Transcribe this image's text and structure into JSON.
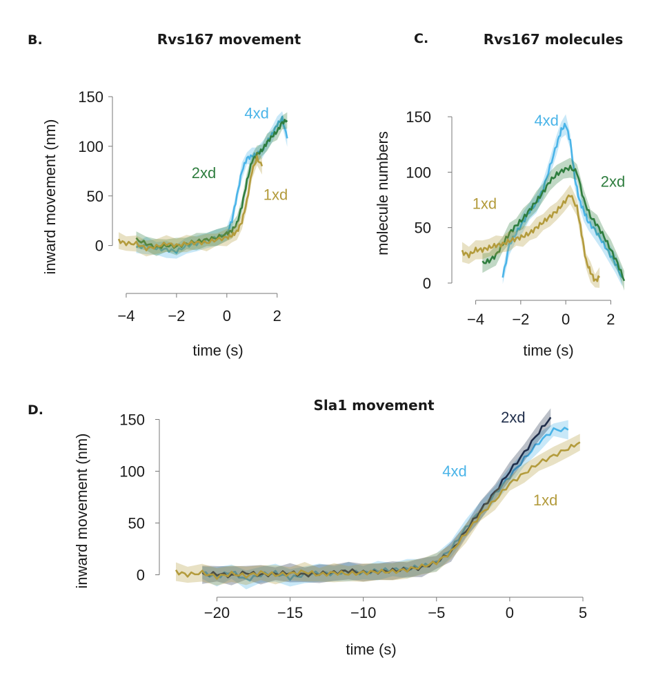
{
  "colors": {
    "4xd": "#4ab4e8",
    "2xd": "#2e7d3e",
    "1xd": "#b39b3c",
    "2xd_dark": "#1f2d4a"
  },
  "chart_data": [
    {
      "panel": "B.",
      "type": "line",
      "title": "Rvs167 movement",
      "xlabel": "time (s)",
      "ylabel": "inward movement (nm)",
      "xlim": [
        -4.3,
        2.5
      ],
      "ylim": [
        -10,
        150
      ],
      "xticks": [
        "−4",
        "−2",
        "0",
        "2"
      ],
      "xtick_values": [
        -4,
        -2,
        0,
        2
      ],
      "yticks": [
        "0",
        "50",
        "100",
        "150"
      ],
      "ytick_values": [
        0,
        50,
        100,
        150
      ],
      "shaded_error": true,
      "series": [
        {
          "name": "4xd",
          "color_key": "4xd",
          "x": [
            -3.6,
            -3.2,
            -2.8,
            -2.4,
            -2.0,
            -1.6,
            -1.2,
            -0.8,
            -0.4,
            0.0,
            0.2,
            0.4,
            0.6,
            0.8,
            1.0,
            1.2,
            1.4,
            1.6,
            1.8,
            2.0,
            2.2,
            2.4
          ],
          "y": [
            -2,
            0,
            -3,
            -4,
            -6,
            0,
            2,
            5,
            8,
            12,
            25,
            50,
            75,
            88,
            90,
            92,
            96,
            104,
            112,
            122,
            128,
            108
          ]
        },
        {
          "name": "2xd",
          "color_key": "2xd",
          "x": [
            -3.6,
            -3.2,
            -2.8,
            -2.4,
            -2.0,
            -1.6,
            -1.2,
            -0.8,
            -0.4,
            0.0,
            0.2,
            0.4,
            0.6,
            0.8,
            1.0,
            1.2,
            1.4,
            1.6,
            1.8,
            2.0,
            2.2,
            2.4
          ],
          "y": [
            6,
            2,
            -2,
            0,
            -1,
            2,
            4,
            6,
            8,
            12,
            15,
            22,
            40,
            65,
            85,
            92,
            96,
            104,
            110,
            115,
            124,
            126
          ]
        },
        {
          "name": "1xd",
          "color_key": "1xd",
          "x": [
            -4.3,
            -4.0,
            -3.6,
            -3.2,
            -2.8,
            -2.4,
            -2.0,
            -1.6,
            -1.2,
            -0.8,
            -0.4,
            0.0,
            0.2,
            0.4,
            0.6,
            0.8,
            1.0,
            1.2,
            1.4
          ],
          "y": [
            5,
            2,
            2,
            -3,
            -1,
            2,
            0,
            2,
            3,
            3,
            6,
            8,
            10,
            14,
            24,
            45,
            75,
            88,
            80
          ]
        }
      ],
      "annotations": [
        {
          "text": "4xd",
          "color_key": "4xd",
          "x": 0.7,
          "y": 128
        },
        {
          "text": "2xd",
          "color_key": "2xd",
          "x": -1.4,
          "y": 68
        },
        {
          "text": "1xd",
          "color_key": "1xd",
          "x": 1.45,
          "y": 46
        }
      ]
    },
    {
      "panel": "C.",
      "type": "line",
      "title": "Rvs167 molecules",
      "xlabel": "time (s)",
      "ylabel": "molecule numbers",
      "xlim": [
        -4.6,
        2.6
      ],
      "ylim": [
        -5,
        165
      ],
      "xticks": [
        "−4",
        "−2",
        "0",
        "2"
      ],
      "xtick_values": [
        -4,
        -2,
        0,
        2
      ],
      "yticks": [
        "0",
        "50",
        "100",
        "150"
      ],
      "ytick_values": [
        0,
        50,
        100,
        150
      ],
      "shaded_error": true,
      "series": [
        {
          "name": "4xd",
          "color_key": "4xd",
          "x": [
            -2.8,
            -2.5,
            -2.2,
            -1.9,
            -1.6,
            -1.3,
            -1.0,
            -0.7,
            -0.4,
            -0.2,
            0.0,
            0.2,
            0.4,
            0.6,
            0.8,
            1.0,
            1.3,
            1.6,
            1.9,
            2.2,
            2.5
          ],
          "y": [
            5,
            35,
            45,
            55,
            65,
            72,
            85,
            105,
            125,
            138,
            143,
            128,
            95,
            75,
            65,
            55,
            48,
            38,
            28,
            18,
            5
          ]
        },
        {
          "name": "2xd",
          "color_key": "2xd",
          "x": [
            -3.7,
            -3.4,
            -3.1,
            -2.8,
            -2.5,
            -2.2,
            -1.9,
            -1.6,
            -1.3,
            -1.0,
            -0.7,
            -0.4,
            -0.1,
            0.2,
            0.5,
            0.8,
            1.1,
            1.4,
            1.7,
            2.0,
            2.3,
            2.6
          ],
          "y": [
            18,
            20,
            25,
            35,
            45,
            52,
            58,
            66,
            74,
            82,
            92,
            98,
            102,
            104,
            100,
            75,
            60,
            52,
            42,
            30,
            18,
            2
          ]
        },
        {
          "name": "1xd",
          "color_key": "1xd",
          "x": [
            -4.6,
            -4.3,
            -4.0,
            -3.7,
            -3.4,
            -3.1,
            -2.8,
            -2.5,
            -2.2,
            -1.9,
            -1.6,
            -1.3,
            -1.0,
            -0.7,
            -0.4,
            -0.1,
            0.2,
            0.5,
            0.7,
            0.9,
            1.1,
            1.3,
            1.5
          ],
          "y": [
            28,
            25,
            30,
            30,
            32,
            34,
            35,
            38,
            40,
            42,
            45,
            50,
            55,
            60,
            65,
            72,
            80,
            68,
            45,
            20,
            10,
            2,
            5
          ]
        }
      ],
      "annotations": [
        {
          "text": "4xd",
          "color_key": "4xd",
          "x": -1.4,
          "y": 142
        },
        {
          "text": "2xd",
          "color_key": "2xd",
          "x": 1.55,
          "y": 87
        },
        {
          "text": "1xd",
          "color_key": "1xd",
          "x": -4.15,
          "y": 67
        }
      ]
    },
    {
      "panel": "D.",
      "type": "line",
      "title": "Sla1 movement",
      "xlabel": "time (s)",
      "ylabel": "inward movement (nm)",
      "xlim": [
        -22.8,
        5
      ],
      "ylim": [
        -15,
        155
      ],
      "xticks": [
        "−20",
        "−15",
        "−10",
        "−5",
        "0",
        "5"
      ],
      "xtick_values": [
        -20,
        -15,
        -10,
        -5,
        0,
        5
      ],
      "yticks": [
        "0",
        "50",
        "100",
        "150"
      ],
      "ytick_values": [
        0,
        50,
        100,
        150
      ],
      "shaded_error": true,
      "series": [
        {
          "name": "4xd",
          "color_key": "4xd",
          "x": [
            -21,
            -20,
            -19,
            -18,
            -17,
            -16,
            -15,
            -14,
            -13,
            -12,
            -11,
            -10,
            -9,
            -8,
            -7,
            -6,
            -5,
            -4,
            -3,
            -2,
            -1,
            0,
            1,
            2,
            3,
            4
          ],
          "y": [
            2,
            -2,
            3,
            -5,
            0,
            2,
            -3,
            0,
            2,
            1,
            3,
            2,
            4,
            5,
            6,
            8,
            12,
            25,
            45,
            62,
            78,
            95,
            112,
            128,
            140,
            140
          ]
        },
        {
          "name": "2xd",
          "color_key": "2xd_dark",
          "x": [
            -21,
            -20,
            -19,
            -18,
            -17,
            -16,
            -15,
            -14,
            -13,
            -12,
            -11,
            -10,
            -9,
            -8,
            -7,
            -6,
            -5,
            -4,
            -3,
            -2,
            -1,
            0,
            1,
            2,
            2.8
          ],
          "y": [
            0,
            1,
            -1,
            2,
            0,
            1,
            2,
            0,
            1,
            2,
            4,
            2,
            3,
            4,
            5,
            7,
            12,
            22,
            42,
            62,
            80,
            100,
            118,
            138,
            152
          ]
        },
        {
          "name": "1xd",
          "color_key": "1xd",
          "x": [
            -22.8,
            -22,
            -21,
            -20,
            -19,
            -18,
            -17,
            -16,
            -15,
            -14,
            -13,
            -12,
            -11,
            -10,
            -9,
            -8,
            -7,
            -6,
            -5,
            -4,
            -3,
            -2,
            -1,
            0,
            1,
            2,
            3,
            4,
            4.8
          ],
          "y": [
            3,
            0,
            2,
            -2,
            1,
            -1,
            2,
            0,
            1,
            3,
            0,
            2,
            1,
            2,
            3,
            3,
            5,
            8,
            12,
            22,
            40,
            58,
            72,
            88,
            98,
            108,
            115,
            122,
            128
          ]
        }
      ],
      "annotations": [
        {
          "text": "2xd",
          "color_key": "2xd_dark",
          "x": -0.6,
          "y": 147
        },
        {
          "text": "4xd",
          "color_key": "4xd",
          "x": -4.6,
          "y": 95
        },
        {
          "text": "1xd",
          "color_key": "1xd",
          "x": 1.6,
          "y": 67
        }
      ]
    }
  ]
}
